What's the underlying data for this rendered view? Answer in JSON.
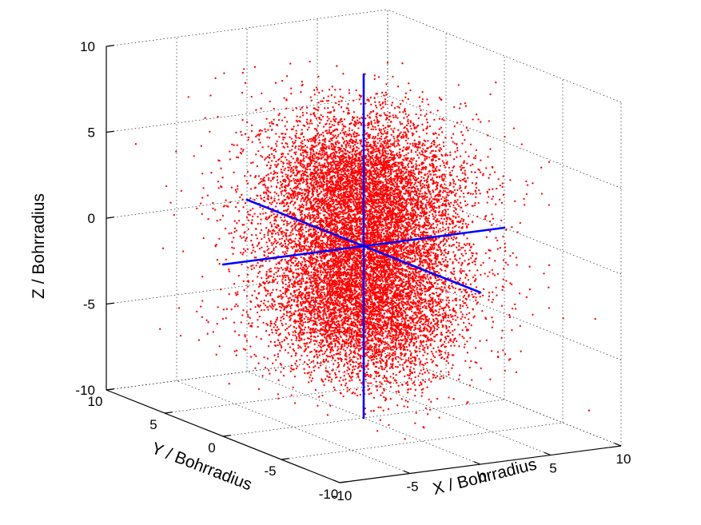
{
  "chart_data": {
    "type": "scatter",
    "projection": "3d",
    "title": "",
    "xlabel": "X / Bohrradius",
    "ylabel": "Y / Bohrradius",
    "zlabel": "Z / Bohrradius",
    "xlim": [
      -10,
      10
    ],
    "ylim": [
      -10,
      10
    ],
    "zlim": [
      -10,
      10
    ],
    "xticks": [
      "-10",
      "-5",
      "0",
      "5",
      "10"
    ],
    "yticks": [
      "-10",
      "-5",
      "0",
      "5",
      "10"
    ],
    "zticks": [
      "-10",
      "-5",
      "0",
      "5",
      "10"
    ],
    "grid": true,
    "series": [
      {
        "kind": "points",
        "color": "#ff0000",
        "distribution": "two lobes along z centered at z = +3 and z = -3 (p_z orbital probability density)",
        "lobe_centers": [
          [
            0,
            0,
            3
          ],
          [
            0,
            0,
            -3
          ]
        ],
        "count_per_lobe": 7000
      }
    ],
    "reference_axes": {
      "color": "#0000ff",
      "x_extent": [
        -10,
        10
      ],
      "y_extent": [
        -10,
        10
      ],
      "z_extent": [
        -10,
        10
      ]
    }
  }
}
